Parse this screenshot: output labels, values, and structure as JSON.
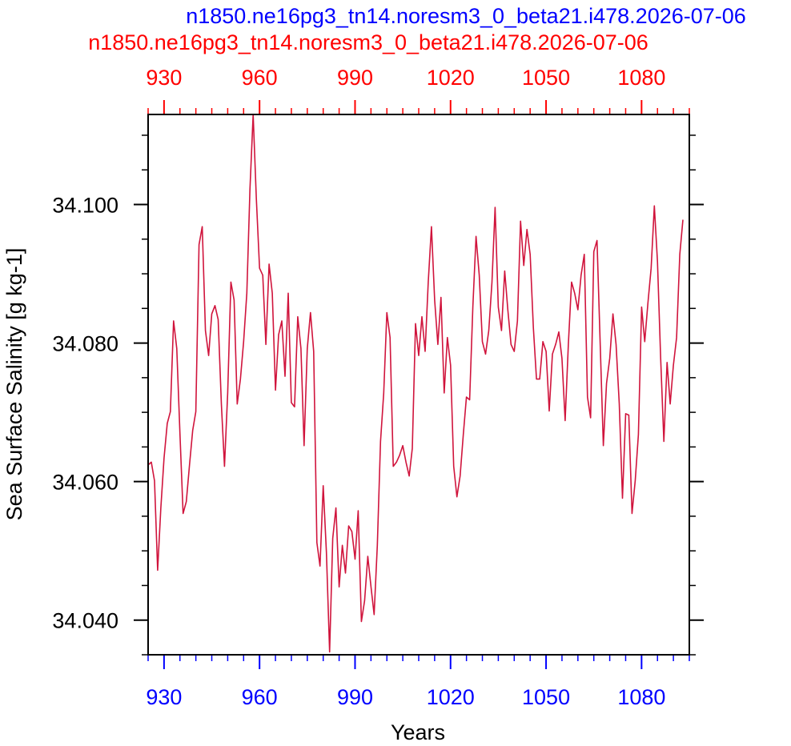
{
  "titles": {
    "blue": "n1850.ne16pg3_tn14.noresm3_0_beta21.i478.2026-07-06",
    "red": "n1850.ne16pg3_tn14.noresm3_0_beta21.i478.2026-07-06"
  },
  "colors": {
    "blue": "#0000ff",
    "red": "#ff0000",
    "series_line": "#d0143c",
    "frame": "#000000"
  },
  "chart_data": {
    "type": "line",
    "xlabel": "Years",
    "ylabel": "Sea Surface Salinity [g kg-1]",
    "xlim": [
      925,
      1095
    ],
    "ylim": [
      34.035,
      34.113
    ],
    "x_ticks": [
      930,
      960,
      990,
      1020,
      1050,
      1080
    ],
    "x_tick_labels": [
      "930",
      "960",
      "990",
      "1020",
      "1050",
      "1080"
    ],
    "y_ticks": [
      34.04,
      34.06,
      34.08,
      34.1
    ],
    "y_tick_labels": [
      "34.040",
      "34.060",
      "34.080",
      "34.100"
    ],
    "grid": false,
    "series": [
      {
        "x_start": 925,
        "x_step": 1,
        "values": [
          34.0624,
          34.0628,
          34.0601,
          34.0472,
          34.0562,
          34.0634,
          34.0684,
          34.0701,
          34.0832,
          34.0792,
          34.0668,
          34.0554,
          34.0571,
          34.0624,
          34.0674,
          34.0701,
          34.0942,
          34.0968,
          34.0818,
          34.0782,
          34.0842,
          34.0854,
          34.0834,
          34.0712,
          34.0622,
          34.0728,
          34.0888,
          34.0862,
          34.0712,
          34.0748,
          34.0802,
          34.0872,
          34.1022,
          34.1132,
          34.1008,
          34.0908,
          34.0898,
          34.0798,
          34.0914,
          34.0872,
          34.0732,
          34.0812,
          34.0832,
          34.0752,
          34.0872,
          34.0714,
          34.0708,
          34.0838,
          34.0792,
          34.0652,
          34.0792,
          34.0844,
          34.0788,
          34.0512,
          34.0478,
          34.0594,
          34.0498,
          34.0354,
          34.0518,
          34.0562,
          34.0448,
          34.0508,
          34.0468,
          34.0536,
          34.0528,
          34.0488,
          34.0558,
          34.0398,
          34.0428,
          34.0492,
          34.0448,
          34.0408,
          34.0508,
          34.0658,
          34.0728,
          34.0844,
          34.0808,
          34.0622,
          34.0628,
          34.0638,
          34.0652,
          34.0628,
          34.0608,
          34.0648,
          34.0828,
          34.0782,
          34.0838,
          34.0788,
          34.0888,
          34.0968,
          34.0862,
          34.0798,
          34.0866,
          34.0728,
          34.0808,
          34.0768,
          34.0622,
          34.0578,
          34.0608,
          34.0668,
          34.0722,
          34.0718,
          34.0852,
          34.0954,
          34.0898,
          34.0802,
          34.0784,
          34.0818,
          34.0888,
          34.0996,
          34.0852,
          34.0818,
          34.0904,
          34.0848,
          34.0798,
          34.0788,
          34.0832,
          34.0976,
          34.0912,
          34.0964,
          34.0928,
          34.0822,
          34.0748,
          34.0748,
          34.0802,
          34.0788,
          34.0702,
          34.0784,
          34.0798,
          34.0816,
          34.0778,
          34.0688,
          34.0798,
          34.0888,
          34.0872,
          34.0848,
          34.0898,
          34.0928,
          34.0722,
          34.0692,
          34.0932,
          34.0948,
          34.0798,
          34.0652,
          34.0742,
          34.0778,
          34.0842,
          34.0798,
          34.0712,
          34.0576,
          34.0698,
          34.0696,
          34.0554,
          34.0601,
          34.0668,
          34.0852,
          34.0802,
          34.0858,
          34.0908,
          34.0998,
          34.0918,
          34.0778,
          34.0658,
          34.0772,
          34.0712,
          34.0768,
          34.0808,
          34.0928,
          34.0978
        ]
      }
    ]
  }
}
